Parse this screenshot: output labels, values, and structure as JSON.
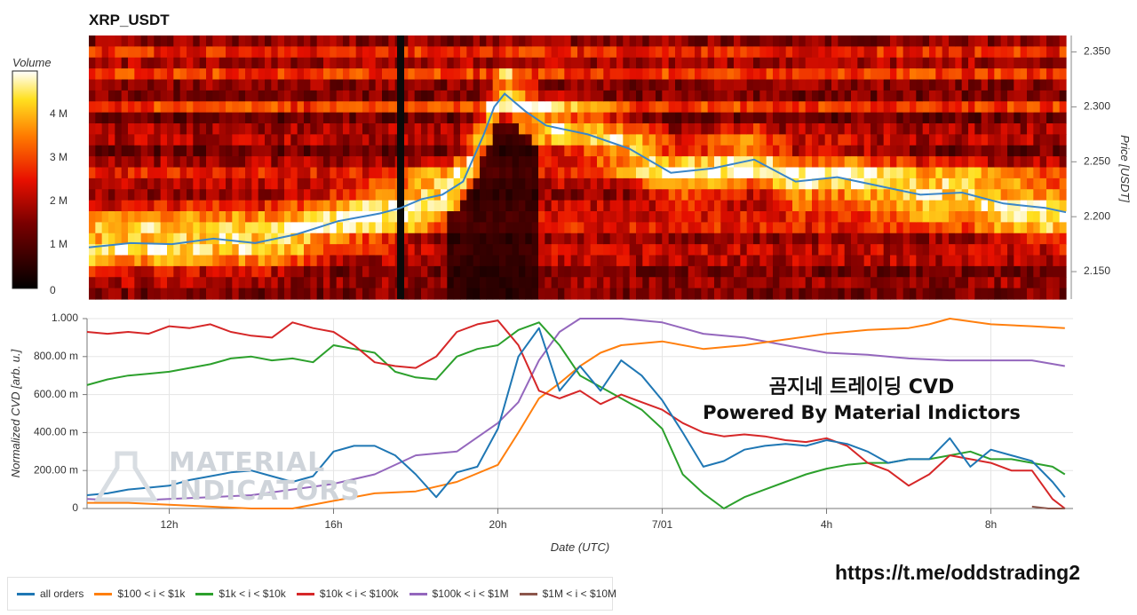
{
  "title": "XRP_USDT",
  "overlay": {
    "line1": "곰지네 트레이딩 CVD",
    "line2": "Powered By Material Indictors"
  },
  "link": "https://t.me/oddstrading2",
  "watermark": {
    "line1": "MATERIAL",
    "line2": "INDICATORS"
  },
  "colors": {
    "all_orders": "#1f77b4",
    "tier_100_1k": "#ff7f0e",
    "tier_1k_10k": "#2ca02c",
    "tier_10k_100k": "#d62728",
    "tier_100k_1m": "#9467bd",
    "tier_1m_10m": "#8c564b"
  },
  "chart_data": [
    {
      "type": "heatmap",
      "title": "XRP_USDT",
      "ylabel": "Price [USDT]",
      "colorbar_label": "Volume",
      "colorbar_ticks": [
        "0",
        "1 M",
        "2 M",
        "3 M",
        "4 M"
      ],
      "colorbar_range": [
        0,
        5000000
      ],
      "y_ticks": [
        "2.150",
        "2.200",
        "2.250",
        "2.300",
        "2.350"
      ],
      "ylim": [
        2.125,
        2.365
      ],
      "price_line": {
        "x": [
          "10:00",
          "11:00",
          "12:00",
          "13:00",
          "14:00",
          "15:00",
          "16:00",
          "17:00",
          "17:30",
          "18:00",
          "18:30",
          "19:00",
          "19:30",
          "19:45",
          "20:00",
          "20:30",
          "21:00",
          "22:00",
          "23:00",
          "00:00",
          "01:00",
          "02:00",
          "03:00",
          "04:00",
          "05:00",
          "06:00",
          "07:00",
          "08:00",
          "09:00",
          "09:30"
        ],
        "y": [
          2.172,
          2.176,
          2.175,
          2.18,
          2.176,
          2.184,
          2.196,
          2.203,
          2.208,
          2.216,
          2.22,
          2.232,
          2.275,
          2.3,
          2.312,
          2.296,
          2.283,
          2.275,
          2.262,
          2.24,
          2.244,
          2.252,
          2.232,
          2.236,
          2.228,
          2.22,
          2.222,
          2.212,
          2.208,
          2.204
        ]
      }
    },
    {
      "type": "line",
      "xlabel": "Date (UTC)",
      "ylabel": "Normalized CVD [arb. u.]",
      "y_ticks": [
        "0",
        "200.00 m",
        "400.00 m",
        "600.00 m",
        "800.00 m",
        "1.000"
      ],
      "ylim": [
        0,
        1
      ],
      "x_ticks": [
        "12h",
        "16h",
        "20h",
        "7/01",
        "4h",
        "8h"
      ],
      "series": [
        {
          "name": "all orders",
          "x": [
            0,
            0.5,
            1,
            1.5,
            2,
            2.5,
            3,
            3.5,
            4,
            4.5,
            5,
            5.5,
            6,
            6.5,
            7,
            7.5,
            8,
            8.5,
            9,
            9.5,
            10,
            10.5,
            11,
            11.5,
            12,
            12.5,
            13,
            13.5,
            14,
            14.5,
            15,
            15.5,
            16,
            16.5,
            17,
            17.5,
            18,
            18.5,
            19,
            19.5,
            20,
            20.5,
            21,
            21.5,
            22,
            22.5,
            23,
            23.5,
            23.8
          ],
          "y": [
            0.07,
            0.08,
            0.1,
            0.11,
            0.12,
            0.15,
            0.17,
            0.19,
            0.2,
            0.17,
            0.14,
            0.17,
            0.3,
            0.33,
            0.33,
            0.28,
            0.18,
            0.06,
            0.19,
            0.22,
            0.42,
            0.8,
            0.95,
            0.62,
            0.75,
            0.62,
            0.78,
            0.7,
            0.57,
            0.4,
            0.22,
            0.25,
            0.31,
            0.33,
            0.34,
            0.33,
            0.36,
            0.34,
            0.3,
            0.24,
            0.26,
            0.26,
            0.37,
            0.22,
            0.31,
            0.28,
            0.25,
            0.14,
            0.06
          ]
        },
        {
          "name": "$100 < i < $1k",
          "x": [
            0,
            1,
            2,
            3,
            4,
            5,
            6,
            7,
            8,
            9,
            10,
            10.5,
            11,
            11.5,
            12,
            12.5,
            13,
            14,
            15,
            16,
            17,
            18,
            19,
            20,
            20.5,
            21,
            22,
            23,
            23.8
          ],
          "y": [
            0.03,
            0.03,
            0.02,
            0.01,
            0.0,
            0.0,
            0.04,
            0.08,
            0.09,
            0.14,
            0.23,
            0.4,
            0.58,
            0.66,
            0.75,
            0.82,
            0.86,
            0.88,
            0.84,
            0.86,
            0.89,
            0.92,
            0.94,
            0.95,
            0.97,
            1.0,
            0.97,
            0.96,
            0.95
          ]
        },
        {
          "name": "$1k < i < $10k",
          "x": [
            0,
            0.5,
            1,
            1.5,
            2,
            2.5,
            3,
            3.5,
            4,
            4.5,
            5,
            5.5,
            6,
            6.5,
            7,
            7.5,
            8,
            8.5,
            9,
            9.5,
            10,
            10.5,
            11,
            11.5,
            12,
            12.5,
            13,
            13.5,
            14,
            14.5,
            15,
            15.5,
            16,
            16.5,
            17,
            17.5,
            18,
            18.5,
            19,
            19.5,
            20,
            20.5,
            21,
            21.5,
            22,
            22.5,
            23,
            23.5,
            23.8
          ],
          "y": [
            0.65,
            0.68,
            0.7,
            0.71,
            0.72,
            0.74,
            0.76,
            0.79,
            0.8,
            0.78,
            0.79,
            0.77,
            0.86,
            0.84,
            0.82,
            0.72,
            0.69,
            0.68,
            0.8,
            0.84,
            0.86,
            0.94,
            0.98,
            0.86,
            0.7,
            0.64,
            0.58,
            0.52,
            0.42,
            0.18,
            0.08,
            0.0,
            0.06,
            0.1,
            0.14,
            0.18,
            0.21,
            0.23,
            0.24,
            0.24,
            0.26,
            0.26,
            0.28,
            0.3,
            0.26,
            0.26,
            0.24,
            0.22,
            0.18
          ]
        },
        {
          "name": "$10k < i < $100k",
          "x": [
            0,
            0.5,
            1,
            1.5,
            2,
            2.5,
            3,
            3.5,
            4,
            4.5,
            5,
            5.5,
            6,
            6.5,
            7,
            7.5,
            8,
            8.5,
            9,
            9.5,
            10,
            10.5,
            11,
            11.5,
            12,
            12.5,
            13,
            13.5,
            14,
            14.5,
            15,
            15.5,
            16,
            16.5,
            17,
            17.5,
            18,
            18.5,
            19,
            19.5,
            20,
            20.5,
            21,
            21.5,
            22,
            22.5,
            23,
            23.5,
            23.8
          ],
          "y": [
            0.93,
            0.92,
            0.93,
            0.92,
            0.96,
            0.95,
            0.97,
            0.93,
            0.91,
            0.9,
            0.98,
            0.95,
            0.93,
            0.86,
            0.77,
            0.75,
            0.74,
            0.8,
            0.93,
            0.97,
            0.99,
            0.86,
            0.62,
            0.58,
            0.62,
            0.55,
            0.6,
            0.56,
            0.52,
            0.45,
            0.4,
            0.38,
            0.39,
            0.38,
            0.36,
            0.35,
            0.37,
            0.33,
            0.24,
            0.2,
            0.12,
            0.18,
            0.28,
            0.26,
            0.24,
            0.2,
            0.2,
            0.05,
            0.0
          ]
        },
        {
          "name": "$100k < i < $1M",
          "x": [
            0,
            1,
            2,
            3,
            4,
            5,
            6,
            7,
            8,
            9,
            10,
            10.5,
            11,
            11.5,
            12,
            13,
            14,
            15,
            16,
            17,
            18,
            19,
            20,
            21,
            22,
            23,
            23.8
          ],
          "y": [
            0.05,
            0.04,
            0.05,
            0.06,
            0.07,
            0.1,
            0.13,
            0.18,
            0.28,
            0.3,
            0.45,
            0.56,
            0.78,
            0.93,
            1.0,
            1.0,
            0.98,
            0.92,
            0.9,
            0.86,
            0.82,
            0.81,
            0.79,
            0.78,
            0.78,
            0.78,
            0.75
          ]
        },
        {
          "name": "$1M < i < $10M",
          "x": [
            23.0,
            23.4,
            23.8
          ],
          "y": [
            0.01,
            0.0,
            0.0
          ]
        }
      ]
    }
  ],
  "legend": {
    "items": [
      {
        "label": "all orders"
      },
      {
        "label": "$100 < i < $1k"
      },
      {
        "label": "$1k < i < $10k"
      },
      {
        "label": "$10k < i < $100k"
      },
      {
        "label": "$100k < i < $1M"
      },
      {
        "label": "$1M < i < $10M"
      }
    ]
  }
}
